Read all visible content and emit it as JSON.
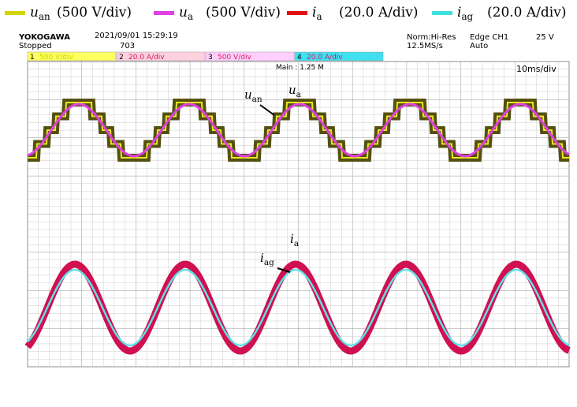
{
  "legend": [
    {
      "symbol": "u",
      "sub": "an",
      "scale": "(500 V/div)",
      "color": "#d4d400"
    },
    {
      "symbol": "u",
      "sub": "a",
      "scale": "(500 V/div)",
      "color": "#e040e0"
    },
    {
      "symbol": "i",
      "sub": "a",
      "scale": "(20.0 A/div)",
      "color": "#e01010"
    },
    {
      "symbol": "i",
      "sub": "ag",
      "scale": "(20.0 A/div)",
      "color": "#40e0e0"
    }
  ],
  "header": {
    "brand": "YOKOGAWA",
    "datetime": "2021/09/01 15:29:19",
    "status": "Stopped",
    "count": "703",
    "mode": "Norm:Hi-Res",
    "rate": "12.5MS/s",
    "trigger": "Edge CH1",
    "level": "25 V",
    "trigger_mode": "Auto"
  },
  "channels": [
    {
      "num": "1",
      "scale": "500 V/div",
      "color": "#ffff60"
    },
    {
      "num": "2",
      "scale": "20.0 A/div",
      "color": "#ffd0e0"
    },
    {
      "num": "3",
      "scale": "500 V/div",
      "color": "#ffd0ff"
    },
    {
      "num": "4",
      "scale": "20.0 A/div",
      "color": "#40e0f0"
    }
  ],
  "main": "Main : 1.25 M",
  "timebase": "10ms/div",
  "annotations": [
    {
      "symbol": "u",
      "sub": "an"
    },
    {
      "symbol": "u",
      "sub": "a"
    },
    {
      "symbol": "i",
      "sub": "a"
    },
    {
      "symbol": "i",
      "sub": "ag"
    }
  ]
}
